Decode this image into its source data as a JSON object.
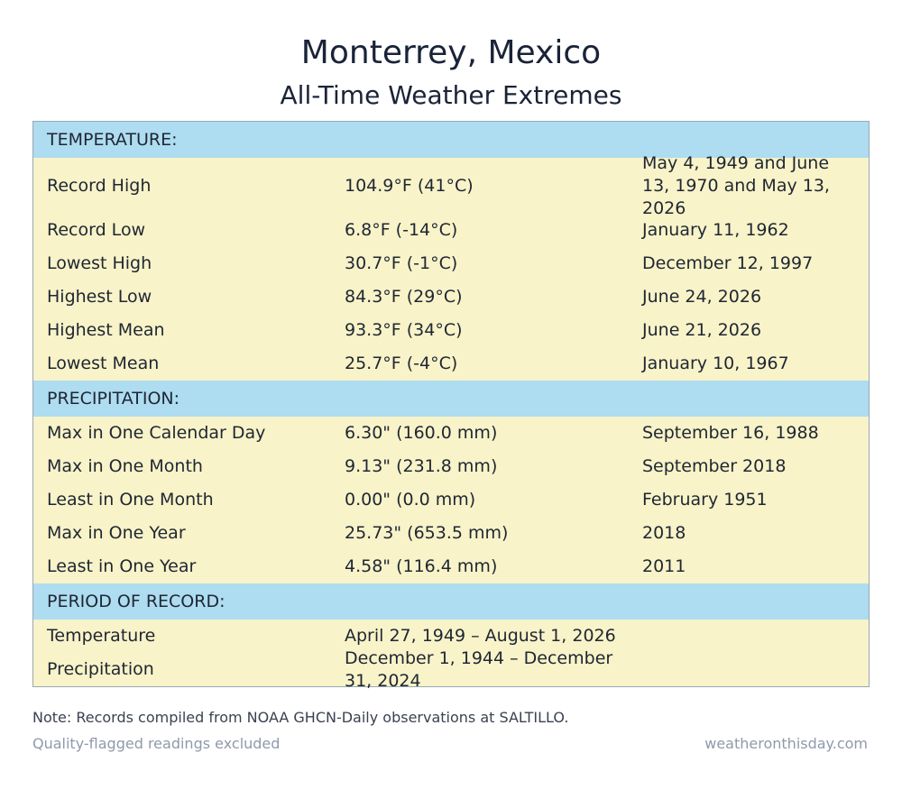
{
  "header": {
    "title": "Monterrey, Mexico",
    "subtitle": "All-Time Weather Extremes"
  },
  "temperature": {
    "heading": "TEMPERATURE:",
    "rows": [
      {
        "label": "Record High",
        "value": "104.9°F (41°C)",
        "date": "May 4, 1949 and June 13, 1970 and May 13, 2026"
      },
      {
        "label": "Record Low",
        "value": "6.8°F (-14°C)",
        "date": "January 11, 1962"
      },
      {
        "label": "Lowest High",
        "value": "30.7°F (-1°C)",
        "date": "December 12, 1997"
      },
      {
        "label": "Highest Low",
        "value": "84.3°F (29°C)",
        "date": "June 24, 2026"
      },
      {
        "label": "Highest Mean",
        "value": "93.3°F (34°C)",
        "date": "June 21, 2026"
      },
      {
        "label": "Lowest Mean",
        "value": "25.7°F (-4°C)",
        "date": "January 10, 1967"
      }
    ]
  },
  "precipitation": {
    "heading": "PRECIPITATION:",
    "rows": [
      {
        "label": "Max in One Calendar Day",
        "value": "6.30\" (160.0 mm)",
        "date": "September 16, 1988"
      },
      {
        "label": "Max in One Month",
        "value": "9.13\" (231.8 mm)",
        "date": "September 2018"
      },
      {
        "label": "Least in One Month",
        "value": "0.00\" (0.0 mm)",
        "date": "February 1951"
      },
      {
        "label": "Max in One Year",
        "value": "25.73\" (653.5 mm)",
        "date": "2018"
      },
      {
        "label": "Least in One Year",
        "value": "4.58\" (116.4 mm)",
        "date": "2011"
      }
    ]
  },
  "period": {
    "heading": "PERIOD OF RECORD:",
    "rows": [
      {
        "label": "Temperature",
        "value": "April 27, 1949 – August 1, 2026"
      },
      {
        "label": "Precipitation",
        "value": "December 1, 1944 – December 31, 2024"
      }
    ]
  },
  "footer": {
    "note": "Note: Records compiled from NOAA GHCN-Daily observations at SALTILLO.",
    "left": "Quality-flagged readings excluded",
    "right": "weatheronthisday.com"
  }
}
